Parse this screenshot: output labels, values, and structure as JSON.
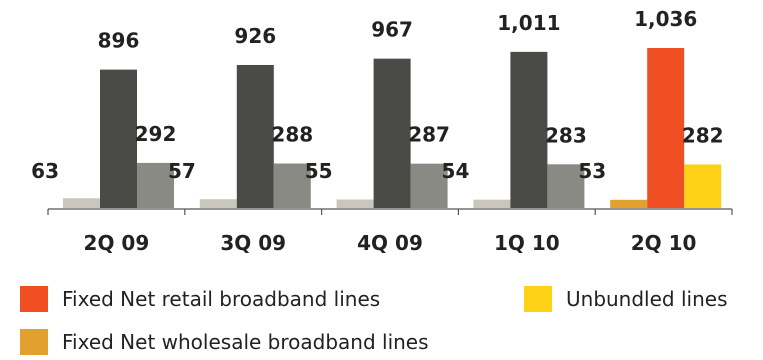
{
  "chart_data": {
    "type": "bar",
    "categories": [
      "2Q 09",
      "3Q 09",
      "4Q 09",
      "1Q 10",
      "2Q 10"
    ],
    "series": [
      {
        "name": "Fixed Net wholesale broadband lines",
        "values": [
          63,
          57,
          55,
          54,
          53
        ]
      },
      {
        "name": "Fixed Net retail broadband lines",
        "values": [
          896,
          926,
          967,
          1011,
          1036
        ]
      },
      {
        "name": "Unbundled lines",
        "values": [
          292,
          288,
          287,
          283,
          282
        ]
      }
    ],
    "value_labels": [
      [
        "63",
        "57",
        "55",
        "54",
        "53"
      ],
      [
        "896",
        "926",
        "967",
        "1,011",
        "1,036"
      ],
      [
        "292",
        "288",
        "287",
        "283",
        "282"
      ]
    ],
    "colors": {
      "historical": [
        "#c8c6bd",
        "#4a4a46",
        "#898a83"
      ],
      "highlight": [
        "#e2a12f",
        "#f04e23",
        "#fcd116"
      ]
    },
    "ylim": [
      0,
      1036
    ],
    "title": "",
    "xlabel": "",
    "ylabel": "",
    "legend_position": "bottom"
  }
}
